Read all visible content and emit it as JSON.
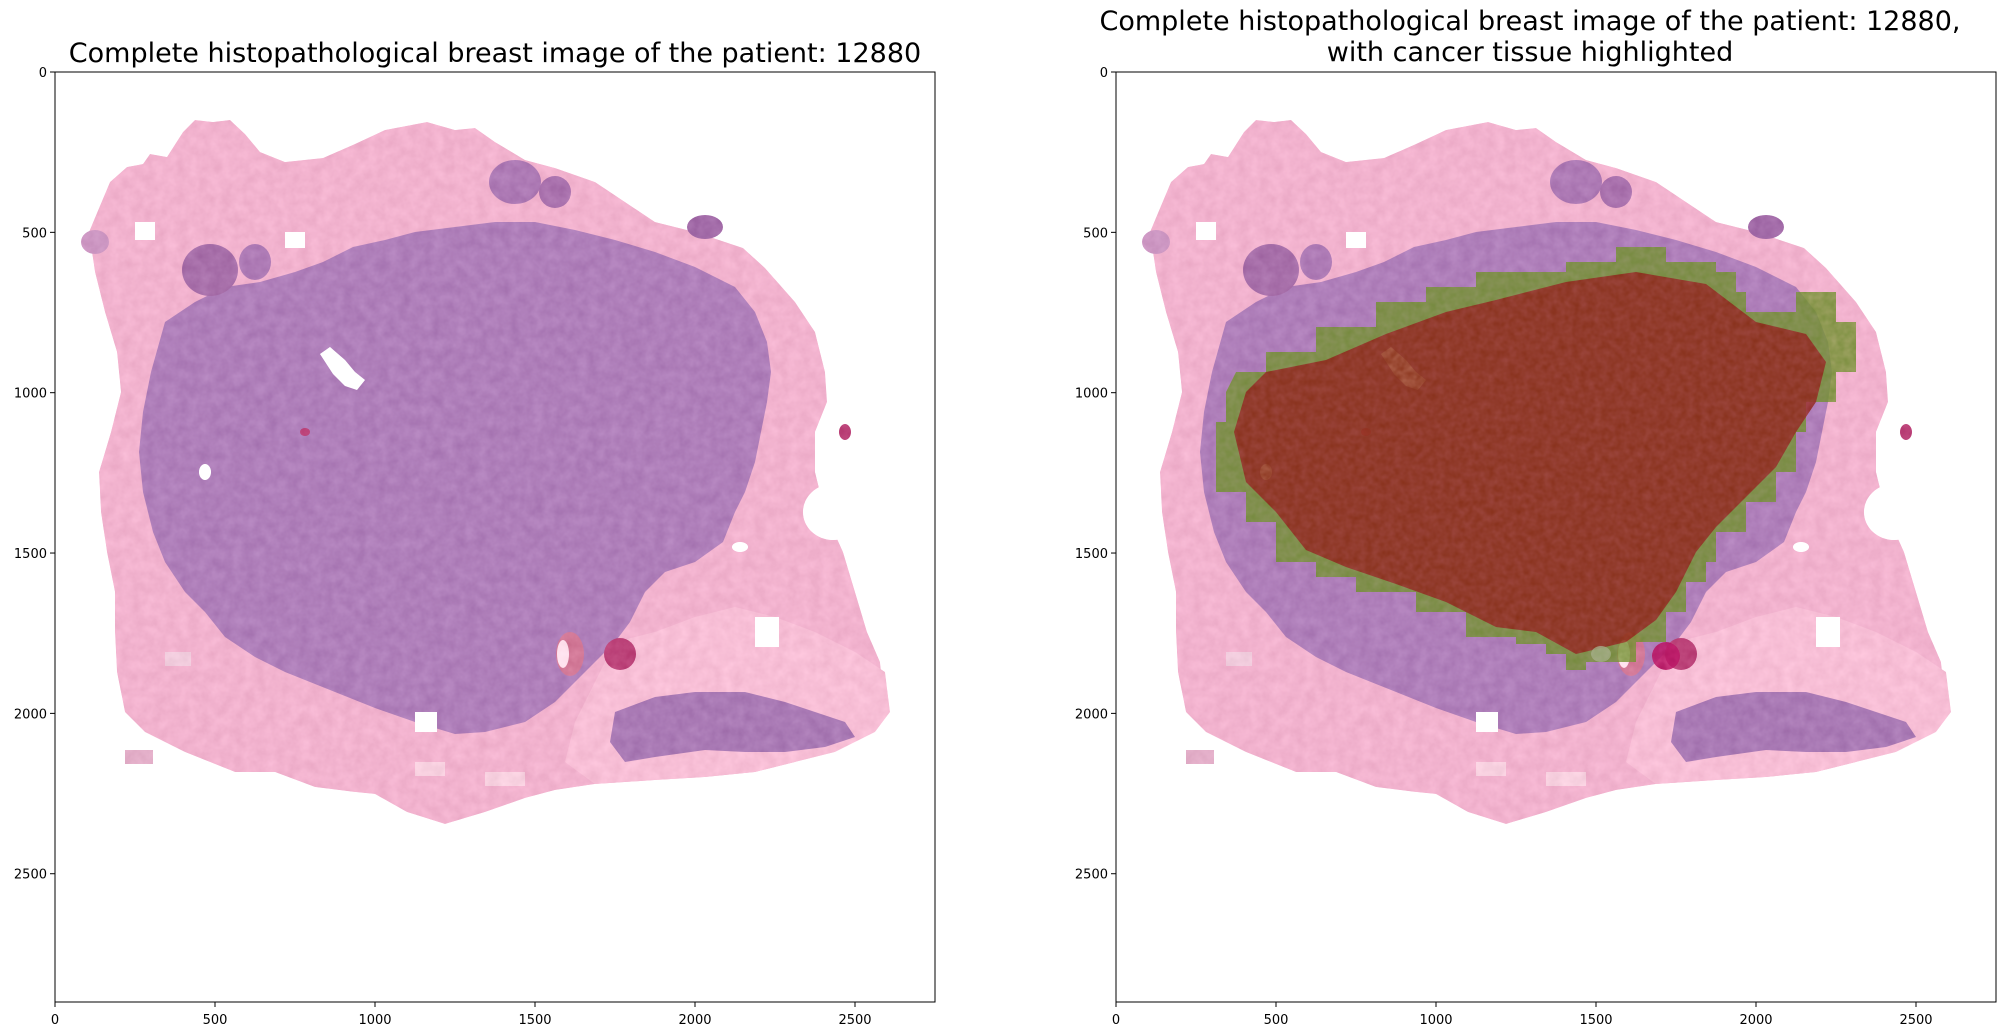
{
  "figure": {
    "panels": [
      {
        "title_lines": [
          "Complete histopathological breast image of the patient: 12880"
        ],
        "x_ticks": [
          "0",
          "500",
          "1000",
          "1500",
          "2000",
          "2500"
        ],
        "y_ticks": [
          "0",
          "500",
          "1000",
          "1500",
          "2000",
          "2500"
        ],
        "x_range": [
          0,
          2750
        ],
        "y_range": [
          2900,
          0
        ],
        "overlay": false
      },
      {
        "title_lines": [
          "Complete histopathological breast image of the patient: 12880,",
          "with cancer tissue highlighted"
        ],
        "x_ticks": [
          "0",
          "500",
          "1000",
          "1500",
          "2000",
          "2500"
        ],
        "y_ticks": [
          "0",
          "500",
          "1000",
          "1500",
          "2000",
          "2500"
        ],
        "x_range": [
          0,
          2750
        ],
        "y_range": [
          2900,
          0
        ],
        "overlay": true
      }
    ],
    "colors": {
      "tissue_pink": "#e8a2c0",
      "tissue_purple": "#9c6aa8",
      "overlay_green": "#6f8a2f",
      "overlay_red": "#8a1f10",
      "background": "#ffffff"
    }
  }
}
